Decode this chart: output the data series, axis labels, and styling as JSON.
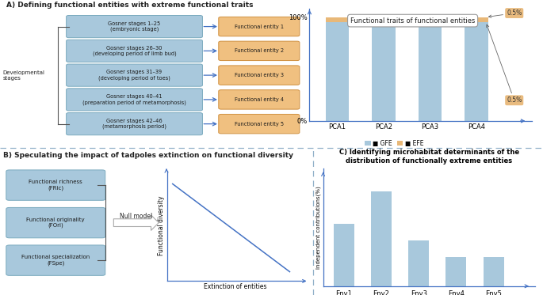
{
  "title_A": "A) Defining functional entities with extreme functional traits",
  "title_B": "B) Speculating the impact of tadpoles extinction on functional diversity",
  "title_C": "C) Identifying microhabitat determinants of the\ndistribution of functionally extreme entities",
  "title_bar": "Functional traits of functional entities",
  "dev_stages_label": "Developmental\nstages",
  "gosner_stages": [
    "Gosner stages 1–25\n(embryonic stage)",
    "Gosner stages 26–30\n(developing period of limb bud)",
    "Gosner stages 31–39\n(developing period of toes)",
    "Gosner stages 40–41\n(preparation period of metamorphosis)",
    "Gosner stages 42–46\n(metamorphosis period)"
  ],
  "entity_labels": [
    "Functional entity 1",
    "Functional entity 2",
    "Functional entity 3",
    "Functional entity 4",
    "Functional entity 5"
  ],
  "blue_box_color": "#a8c8dc",
  "orange_box_color": "#f0c080",
  "blue_box_edge": "#7aaabe",
  "orange_box_edge": "#d09040",
  "bar_categories": [
    "PCA1",
    "PCA2",
    "PCA3",
    "PCA4"
  ],
  "gfe_values": [
    95.5,
    95.0,
    95.5,
    95.5
  ],
  "efe_values": [
    4.5,
    5.0,
    4.5,
    4.5
  ],
  "gfe_color": "#a8c8dc",
  "efe_color": "#e8b878",
  "bar_legend": [
    "GFE",
    "EFE"
  ],
  "fd_metrics": [
    "Functional richness\n(FRic)",
    "Functional originality\n(FOri)",
    "Functional specialization\n(FSpe)"
  ],
  "null_model_label": "Null model",
  "fd_ylabel": "Functional diversity",
  "fd_xlabel": "Extinction of entities",
  "env_categories": [
    "Env1",
    "Env2",
    "Env3",
    "Env4",
    "Env5"
  ],
  "env_values": [
    38,
    58,
    28,
    18,
    18
  ],
  "env_bar_color": "#a8c8dc",
  "env_ylabel": "Independent contributions(%)",
  "bg_color": "#ffffff",
  "text_color": "#222222",
  "arrow_color": "#4472c4",
  "divider_color": "#90b0c8"
}
